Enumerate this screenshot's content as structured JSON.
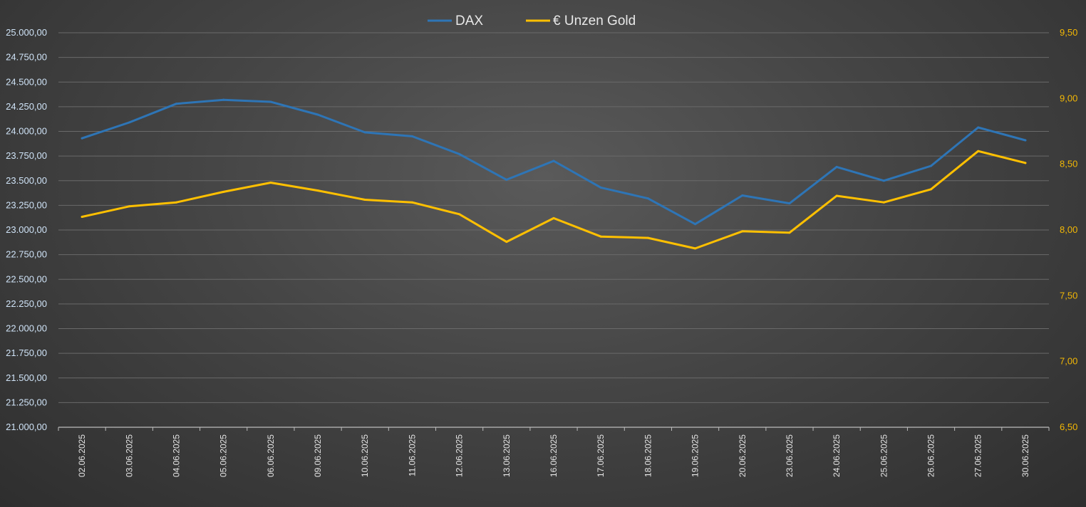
{
  "chart_data": {
    "type": "line",
    "title": "",
    "xlabel": "",
    "ylabel": "",
    "legend": "top-center",
    "grid": true,
    "categories": [
      "02.06.2025",
      "03.06.2025",
      "04.06.2025",
      "05.06.2025",
      "06.06.2025",
      "09.06.2025",
      "10.06.2025",
      "11.06.2025",
      "12.06.2025",
      "13.06.2025",
      "16.06.2025",
      "17.06.2025",
      "18.06.2025",
      "19.06.2025",
      "20.06.2025",
      "23.06.2025",
      "24.06.2025",
      "25.06.2025",
      "26.06.2025",
      "27.06.2025",
      "30.06.2025"
    ],
    "y_left": {
      "min": 21000,
      "max": 25000,
      "step": 250,
      "ticks": [
        "21.000,00",
        "21.250,00",
        "21.500,00",
        "21.750,00",
        "22.000,00",
        "22.250,00",
        "22.500,00",
        "22.750,00",
        "23.000,00",
        "23.250,00",
        "23.500,00",
        "23.750,00",
        "24.000,00",
        "24.250,00",
        "24.500,00",
        "24.750,00",
        "25.000,00"
      ]
    },
    "y_right": {
      "min": 6.5,
      "max": 9.5,
      "step": 0.5,
      "ticks": [
        "6,50",
        "7,00",
        "7,50",
        "8,00",
        "8,50",
        "9,00",
        "9,50"
      ]
    },
    "series": [
      {
        "name": "DAX",
        "axis": "left",
        "color": "#2e75b6",
        "values": [
          23930,
          24090,
          24280,
          24320,
          24300,
          24170,
          23990,
          23950,
          23770,
          23510,
          23700,
          23430,
          23320,
          23060,
          23350,
          23270,
          23640,
          23500,
          23650,
          24040,
          23910
        ]
      },
      {
        "name": "€ Unzen Gold",
        "axis": "right",
        "color": "#ffc000",
        "values": [
          8.1,
          8.18,
          8.21,
          8.29,
          8.36,
          8.3,
          8.23,
          8.21,
          8.12,
          7.91,
          8.09,
          7.95,
          7.94,
          7.86,
          7.99,
          7.98,
          8.26,
          8.21,
          8.31,
          8.6,
          8.51
        ]
      }
    ]
  }
}
